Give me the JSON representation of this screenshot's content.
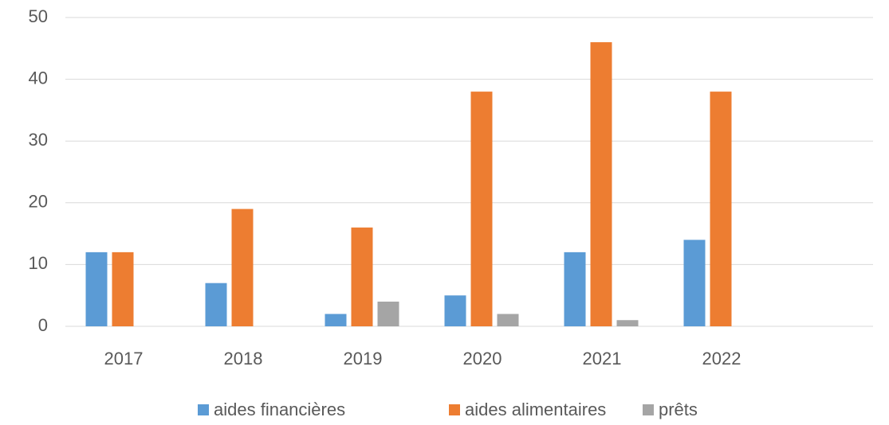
{
  "chart_data": {
    "type": "bar",
    "categories": [
      "2017",
      "2018",
      "2019",
      "2020",
      "2021",
      "2022"
    ],
    "series": [
      {
        "name": "aides financières",
        "color": "#5b9bd5",
        "values": [
          12,
          7,
          2,
          5,
          12,
          14
        ]
      },
      {
        "name": "aides alimentaires",
        "color": "#ed7d31",
        "values": [
          12,
          19,
          16,
          38,
          46,
          38
        ]
      },
      {
        "name": "prêts",
        "color": "#a5a5a5",
        "values": [
          0,
          0,
          4,
          2,
          1,
          0
        ]
      }
    ],
    "ylim": [
      0,
      50
    ],
    "yticks": [
      0,
      10,
      20,
      30,
      40,
      50
    ],
    "grid": true,
    "legend": "bottom"
  }
}
